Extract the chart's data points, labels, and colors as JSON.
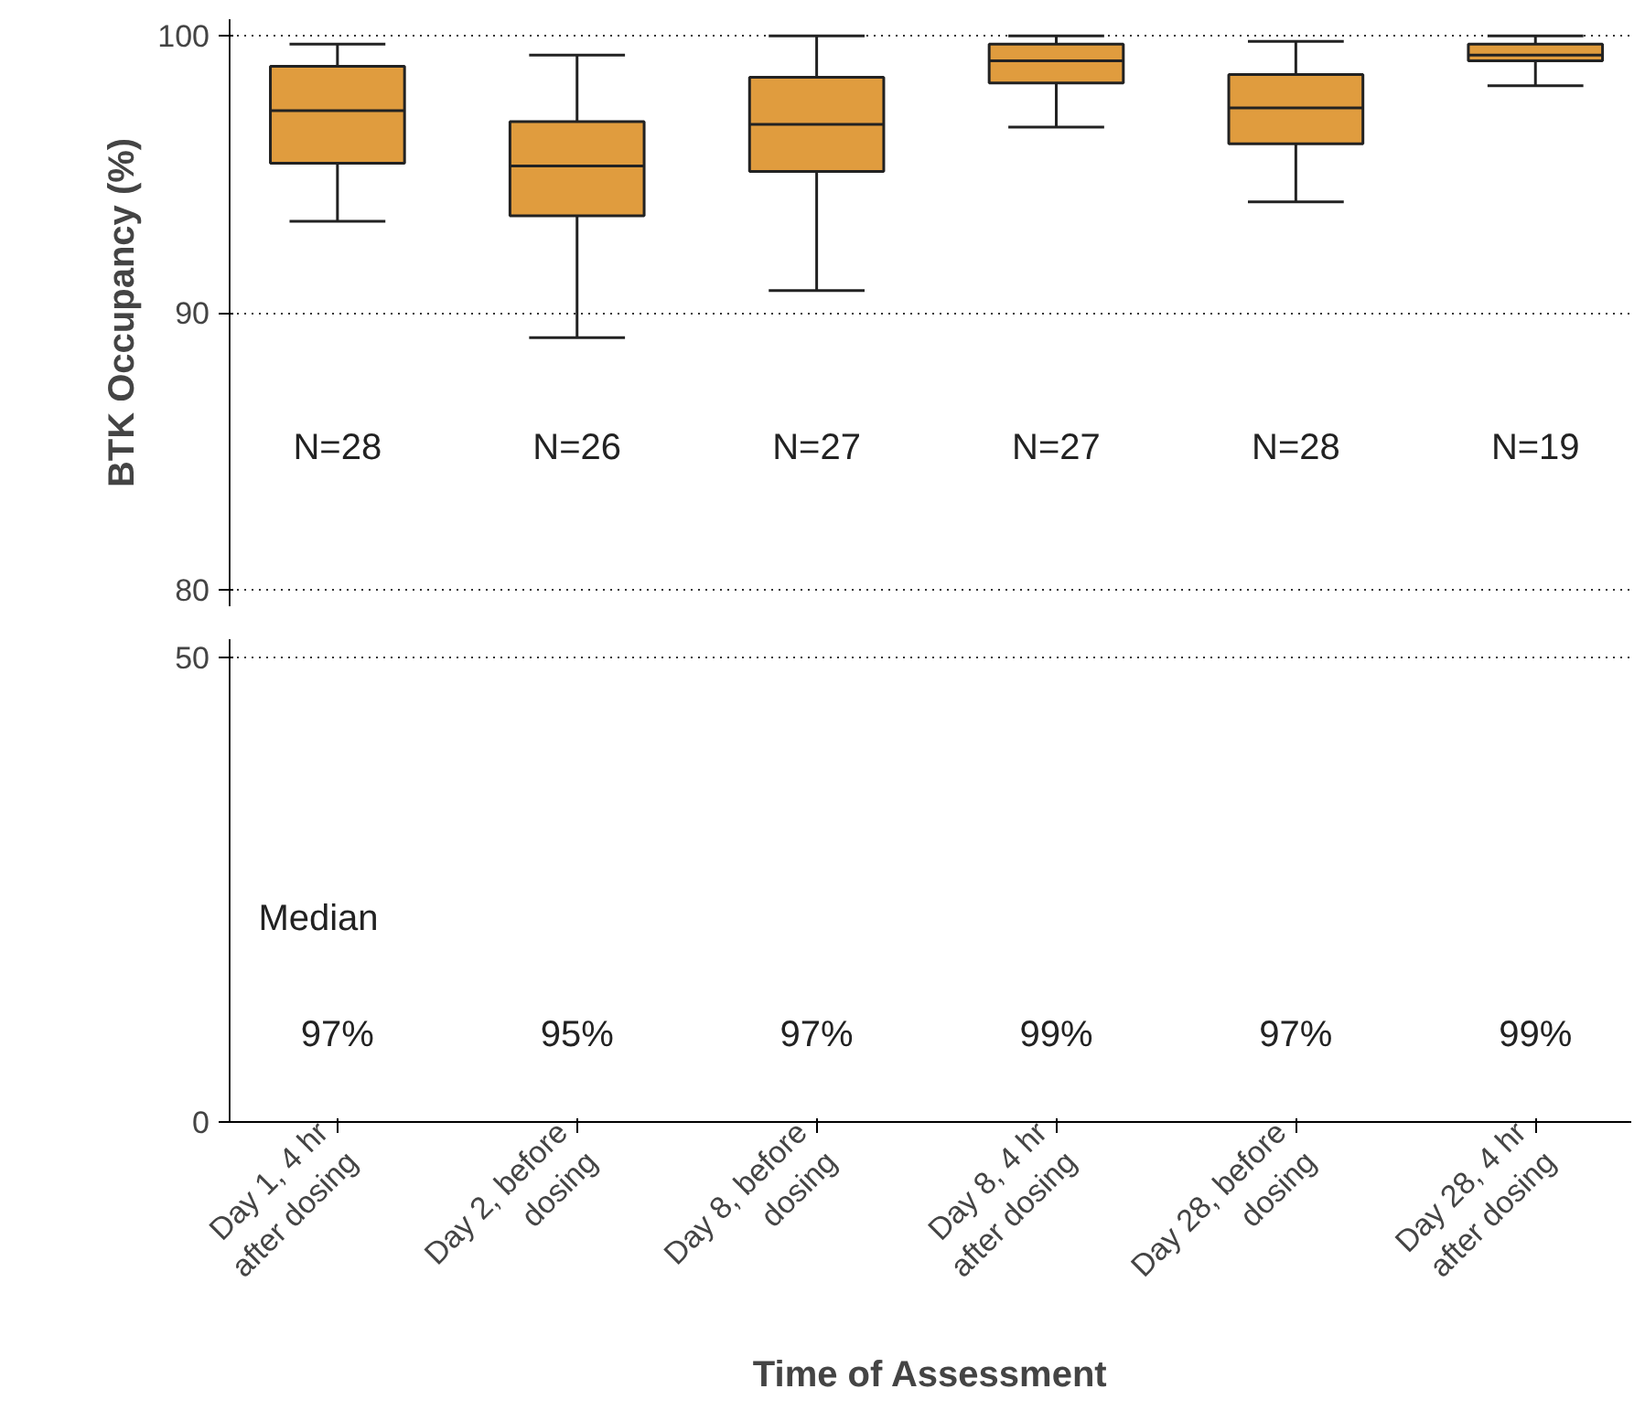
{
  "chart_data": [
    {
      "type": "box",
      "ylabel": "BTK Occupancy (%)",
      "color": "#e09c3e",
      "boxes": [
        {
          "low": 93.3,
          "q1": 95.4,
          "median": 97.3,
          "q3": 98.9,
          "high": 99.7
        },
        {
          "low": 89.1,
          "q1": 93.5,
          "median": 95.3,
          "q3": 96.9,
          "high": 99.3
        },
        {
          "low": 90.8,
          "q1": 95.1,
          "median": 96.8,
          "q3": 98.5,
          "high": 100
        },
        {
          "low": 96.7,
          "q1": 98.3,
          "median": 99.1,
          "q3": 99.7,
          "high": 100
        },
        {
          "low": 94.0,
          "q1": 96.1,
          "median": 97.4,
          "q3": 98.6,
          "high": 99.8
        },
        {
          "low": 98.2,
          "q1": 99.1,
          "median": 99.3,
          "q3": 99.7,
          "high": 100
        }
      ],
      "ylim": [
        79.4,
        100.6
      ],
      "yticks": [
        80,
        90,
        100
      ],
      "grid": "y",
      "annotations": [
        "N=28",
        "N=26",
        "N=27",
        "N=27",
        "N=28",
        "N=19"
      ]
    },
    {
      "type": "box",
      "xlabel": "Time of Assessment",
      "categories": [
        "Day 1, 4 hr\nafter dosing",
        "Day 2, before\ndosing",
        "Day 8, before\ndosing",
        "Day 8, 4 hr\nafter dosing",
        "Day 28, before\ndosing",
        "Day 28, 4 hr\nafter dosing"
      ],
      "ylim": [
        0,
        52
      ],
      "yticks": [
        0,
        50
      ],
      "grid": "y",
      "annotations": [
        "Median",
        "97%",
        "95%",
        "97%",
        "99%",
        "97%",
        "99%"
      ]
    }
  ]
}
